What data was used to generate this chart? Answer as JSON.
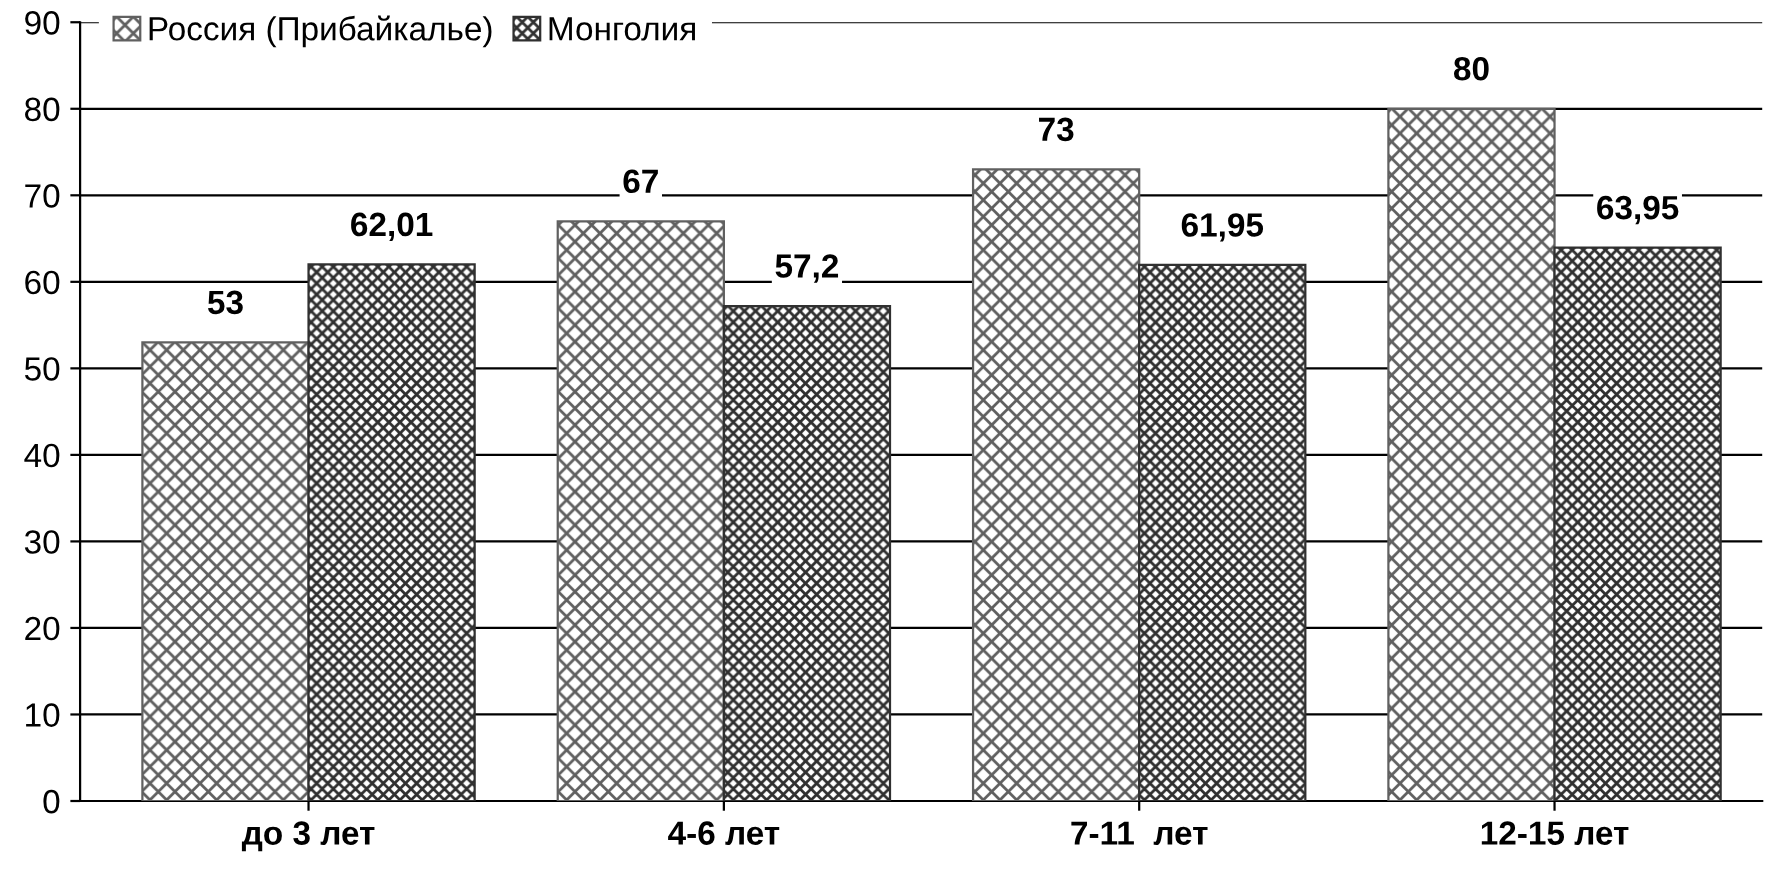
{
  "chart_data": {
    "type": "bar",
    "categories": [
      "до 3 лет",
      "4-6 лет",
      "7-11  лет",
      "12-15 лет"
    ],
    "series": [
      {
        "name": "Россия (Прибайкалье)",
        "color": "#606060",
        "values": [
          53,
          67,
          73,
          80
        ],
        "value_labels": [
          "53",
          "67",
          "73",
          "80"
        ]
      },
      {
        "name": "Монголия",
        "color": "#303030",
        "values": [
          62.01,
          57.2,
          61.95,
          63.95
        ],
        "value_labels": [
          "62,01",
          "57,2",
          "61,95",
          "63,95"
        ]
      }
    ],
    "ylim": [
      0,
      90
    ],
    "yticks": [
      0,
      10,
      20,
      30,
      40,
      50,
      60,
      70,
      80,
      90
    ],
    "grid": "y",
    "legend": "top left"
  }
}
